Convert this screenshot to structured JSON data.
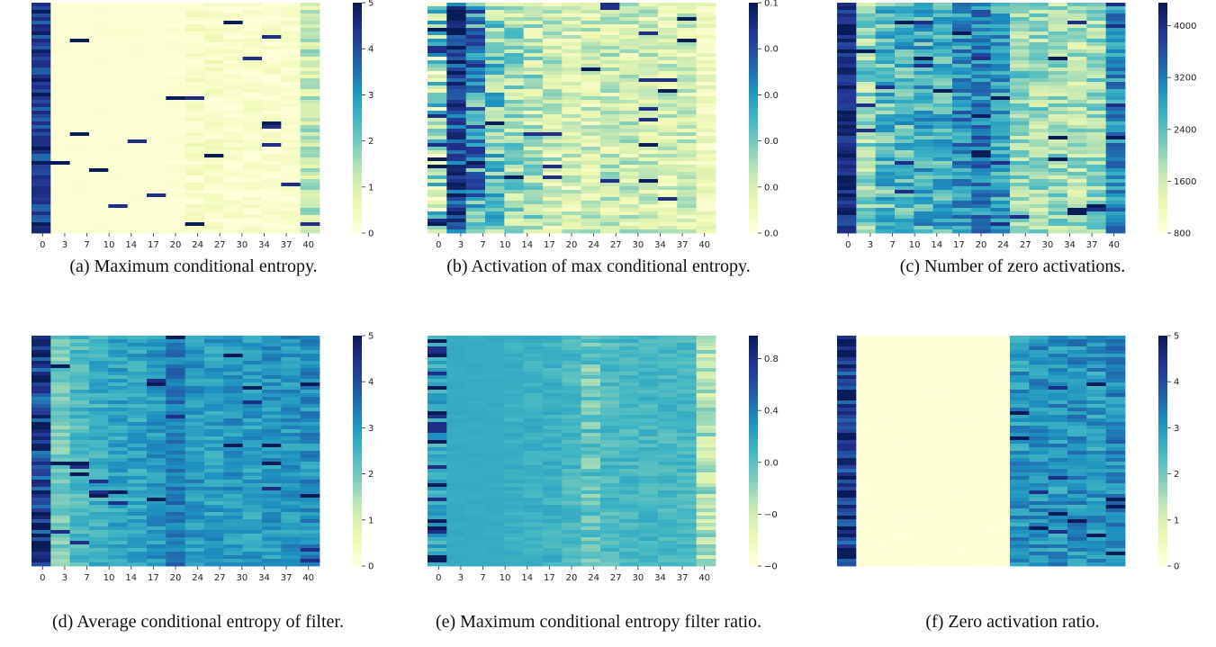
{
  "colors": {
    "colormap": "YlGnBu",
    "stops": [
      "#ffffd9",
      "#edf8b1",
      "#c7e9b4",
      "#7fcdbb",
      "#41b6c4",
      "#1d91c0",
      "#225ea8",
      "#253494",
      "#081d58"
    ]
  },
  "chart_data": [
    {
      "id": "a",
      "type": "heatmap",
      "caption": "(a) Maximum conditional entropy.",
      "x_ticks": [
        "0",
        "3",
        "7",
        "10",
        "14",
        "17",
        "20",
        "24",
        "27",
        "30",
        "34",
        "37",
        "40"
      ],
      "colorbar": {
        "range": [
          0,
          5
        ],
        "ticks": [
          "0",
          "1",
          "2",
          "3",
          "4",
          "5"
        ]
      },
      "columns": [
        {
          "base": 4.3,
          "noise": 0.7,
          "spikes": 0.25
        },
        {
          "base": 0.1,
          "noise": 0.05,
          "spikes": 0.01
        },
        {
          "base": 0.1,
          "noise": 0.05,
          "spikes": 0.01
        },
        {
          "base": 0.1,
          "noise": 0.05,
          "spikes": 0.01
        },
        {
          "base": 0.1,
          "noise": 0.05,
          "spikes": 0.01
        },
        {
          "base": 0.1,
          "noise": 0.05,
          "spikes": 0.01
        },
        {
          "base": 0.1,
          "noise": 0.05,
          "spikes": 0.01
        },
        {
          "base": 0.1,
          "noise": 0.1,
          "spikes": 0.01
        },
        {
          "base": 0.3,
          "noise": 0.35,
          "spikes": 0.02
        },
        {
          "base": 0.3,
          "noise": 0.3,
          "spikes": 0.02
        },
        {
          "base": 0.2,
          "noise": 0.25,
          "spikes": 0.02
        },
        {
          "base": 0.2,
          "noise": 0.25,
          "spikes": 0.02
        },
        {
          "base": 0.2,
          "noise": 0.3,
          "spikes": 0.02
        },
        {
          "base": 0.2,
          "noise": 0.25,
          "spikes": 0.02
        },
        {
          "base": 1.2,
          "noise": 0.7,
          "spikes": 0.05
        }
      ]
    },
    {
      "id": "b",
      "type": "heatmap",
      "caption": "(b) Activation of max conditional entropy.",
      "x_ticks": [
        "0",
        "3",
        "7",
        "10",
        "14",
        "17",
        "20",
        "24",
        "27",
        "30",
        "34",
        "37",
        "40"
      ],
      "colorbar": {
        "range": [
          0,
          0.1
        ],
        "ticks": [
          "0.0",
          "0.0",
          "0.0",
          "0.0",
          "0.0",
          "0.1"
        ]
      },
      "columns": [
        {
          "base": 0.03,
          "noise": 0.035,
          "spikes": 0.15
        },
        {
          "base": 0.082,
          "noise": 0.02,
          "spikes": 0.15
        },
        {
          "base": 0.06,
          "noise": 0.03,
          "spikes": 0.1
        },
        {
          "base": 0.04,
          "noise": 0.025,
          "spikes": 0.05
        },
        {
          "base": 0.032,
          "noise": 0.02,
          "spikes": 0.04
        },
        {
          "base": 0.028,
          "noise": 0.02,
          "spikes": 0.04
        },
        {
          "base": 0.022,
          "noise": 0.018,
          "spikes": 0.03
        },
        {
          "base": 0.018,
          "noise": 0.015,
          "spikes": 0.03
        },
        {
          "base": 0.02,
          "noise": 0.015,
          "spikes": 0.03
        },
        {
          "base": 0.022,
          "noise": 0.016,
          "spikes": 0.03
        },
        {
          "base": 0.022,
          "noise": 0.016,
          "spikes": 0.03
        },
        {
          "base": 0.02,
          "noise": 0.016,
          "spikes": 0.03
        },
        {
          "base": 0.02,
          "noise": 0.015,
          "spikes": 0.03
        },
        {
          "base": 0.02,
          "noise": 0.015,
          "spikes": 0.03
        },
        {
          "base": 0.01,
          "noise": 0.008,
          "spikes": 0.01
        }
      ]
    },
    {
      "id": "c",
      "type": "heatmap",
      "caption": "(c) Number of zero activations.",
      "x_ticks": [
        "0",
        "3",
        "7",
        "10",
        "14",
        "17",
        "20",
        "24",
        "27",
        "30",
        "34",
        "37",
        "40"
      ],
      "colorbar": {
        "range": [
          400,
          4100
        ],
        "ticks": [
          "800",
          "1600",
          "2400",
          "3200",
          "4000"
        ]
      },
      "columns": [
        {
          "base": 3800,
          "noise": 500,
          "spikes": 0.2
        },
        {
          "base": 1700,
          "noise": 700,
          "spikes": 0.05
        },
        {
          "base": 2100,
          "noise": 700,
          "spikes": 0.05
        },
        {
          "base": 2200,
          "noise": 700,
          "spikes": 0.05
        },
        {
          "base": 2300,
          "noise": 700,
          "spikes": 0.05
        },
        {
          "base": 2300,
          "noise": 650,
          "spikes": 0.05
        },
        {
          "base": 2700,
          "noise": 650,
          "spikes": 0.05
        },
        {
          "base": 2900,
          "noise": 650,
          "spikes": 0.05
        },
        {
          "base": 2500,
          "noise": 650,
          "spikes": 0.05
        },
        {
          "base": 1700,
          "noise": 600,
          "spikes": 0.03
        },
        {
          "base": 1600,
          "noise": 600,
          "spikes": 0.03
        },
        {
          "base": 1600,
          "noise": 600,
          "spikes": 0.03
        },
        {
          "base": 1500,
          "noise": 600,
          "spikes": 0.03
        },
        {
          "base": 1600,
          "noise": 600,
          "spikes": 0.03
        },
        {
          "base": 2700,
          "noise": 600,
          "spikes": 0.05
        }
      ]
    },
    {
      "id": "d",
      "type": "heatmap",
      "caption": "(d) Average conditional entropy of filter.",
      "x_ticks": [
        "0",
        "3",
        "7",
        "10",
        "14",
        "17",
        "20",
        "24",
        "27",
        "30",
        "34",
        "37",
        "40"
      ],
      "colorbar": {
        "range": [
          0,
          5
        ],
        "ticks": [
          "0",
          "1",
          "2",
          "3",
          "4",
          "5"
        ]
      },
      "columns": [
        {
          "base": 4.2,
          "noise": 0.9,
          "spikes": 0.2
        },
        {
          "base": 2.0,
          "noise": 0.45,
          "spikes": 0.03
        },
        {
          "base": 2.4,
          "noise": 0.45,
          "spikes": 0.03
        },
        {
          "base": 2.6,
          "noise": 0.45,
          "spikes": 0.03
        },
        {
          "base": 2.8,
          "noise": 0.45,
          "spikes": 0.03
        },
        {
          "base": 2.8,
          "noise": 0.45,
          "spikes": 0.03
        },
        {
          "base": 3.0,
          "noise": 0.45,
          "spikes": 0.03
        },
        {
          "base": 3.4,
          "noise": 0.45,
          "spikes": 0.04
        },
        {
          "base": 3.0,
          "noise": 0.45,
          "spikes": 0.03
        },
        {
          "base": 2.9,
          "noise": 0.45,
          "spikes": 0.03
        },
        {
          "base": 3.0,
          "noise": 0.45,
          "spikes": 0.03
        },
        {
          "base": 2.9,
          "noise": 0.45,
          "spikes": 0.03
        },
        {
          "base": 3.0,
          "noise": 0.45,
          "spikes": 0.03
        },
        {
          "base": 3.0,
          "noise": 0.45,
          "spikes": 0.03
        },
        {
          "base": 3.1,
          "noise": 0.5,
          "spikes": 0.05
        }
      ]
    },
    {
      "id": "e",
      "type": "heatmap",
      "caption": "(e) Maximum conditional entropy filter ratio.",
      "x_ticks": [
        "0",
        "3",
        "7",
        "10",
        "14",
        "17",
        "20",
        "24",
        "27",
        "30",
        "34",
        "37",
        "40"
      ],
      "colorbar": {
        "range": [
          -1.05,
          1.0
        ],
        "ticks": [
          "−0",
          "−0",
          "0.0",
          "0.4",
          "0.8"
        ]
      },
      "columns": [
        {
          "base": 0.05,
          "noise": 0.2,
          "spikes": 0.35
        },
        {
          "base": 0.05,
          "noise": 0.02,
          "spikes": 0.0
        },
        {
          "base": 0.05,
          "noise": 0.02,
          "spikes": 0.0
        },
        {
          "base": 0.05,
          "noise": 0.02,
          "spikes": 0.0
        },
        {
          "base": 0.02,
          "noise": 0.06,
          "spikes": 0.0
        },
        {
          "base": 0.01,
          "noise": 0.08,
          "spikes": 0.0
        },
        {
          "base": 0.0,
          "noise": 0.1,
          "spikes": 0.0
        },
        {
          "base": -0.05,
          "noise": 0.12,
          "spikes": 0.0
        },
        {
          "base": -0.2,
          "noise": 0.25,
          "spikes": 0.0
        },
        {
          "base": -0.08,
          "noise": 0.15,
          "spikes": 0.0
        },
        {
          "base": -0.05,
          "noise": 0.12,
          "spikes": 0.0
        },
        {
          "base": -0.05,
          "noise": 0.12,
          "spikes": 0.0
        },
        {
          "base": -0.05,
          "noise": 0.12,
          "spikes": 0.0
        },
        {
          "base": -0.05,
          "noise": 0.12,
          "spikes": 0.0
        },
        {
          "base": -0.45,
          "noise": 0.3,
          "spikes": 0.0
        }
      ]
    },
    {
      "id": "f",
      "type": "heatmap",
      "caption": "(f) Zero activation ratio.",
      "x_ticks": [],
      "colorbar": {
        "range": [
          0,
          5
        ],
        "ticks": [
          "0",
          "1",
          "2",
          "3",
          "4",
          "5"
        ]
      },
      "columns": [
        {
          "base": 4.3,
          "noise": 0.9,
          "spikes": 0.2
        },
        {
          "base": 0.05,
          "noise": 0.04,
          "spikes": 0.0
        },
        {
          "base": 0.05,
          "noise": 0.04,
          "spikes": 0.0
        },
        {
          "base": 0.05,
          "noise": 0.04,
          "spikes": 0.0
        },
        {
          "base": 0.05,
          "noise": 0.04,
          "spikes": 0.0
        },
        {
          "base": 0.05,
          "noise": 0.04,
          "spikes": 0.0
        },
        {
          "base": 0.05,
          "noise": 0.04,
          "spikes": 0.0
        },
        {
          "base": 0.05,
          "noise": 0.04,
          "spikes": 0.0
        },
        {
          "base": 0.05,
          "noise": 0.04,
          "spikes": 0.0
        },
        {
          "base": 3.0,
          "noise": 0.6,
          "spikes": 0.05
        },
        {
          "base": 3.1,
          "noise": 0.6,
          "spikes": 0.05
        },
        {
          "base": 3.0,
          "noise": 0.6,
          "spikes": 0.05
        },
        {
          "base": 3.1,
          "noise": 0.6,
          "spikes": 0.05
        },
        {
          "base": 3.0,
          "noise": 0.6,
          "spikes": 0.05
        },
        {
          "base": 3.2,
          "noise": 0.6,
          "spikes": 0.05
        }
      ]
    }
  ]
}
